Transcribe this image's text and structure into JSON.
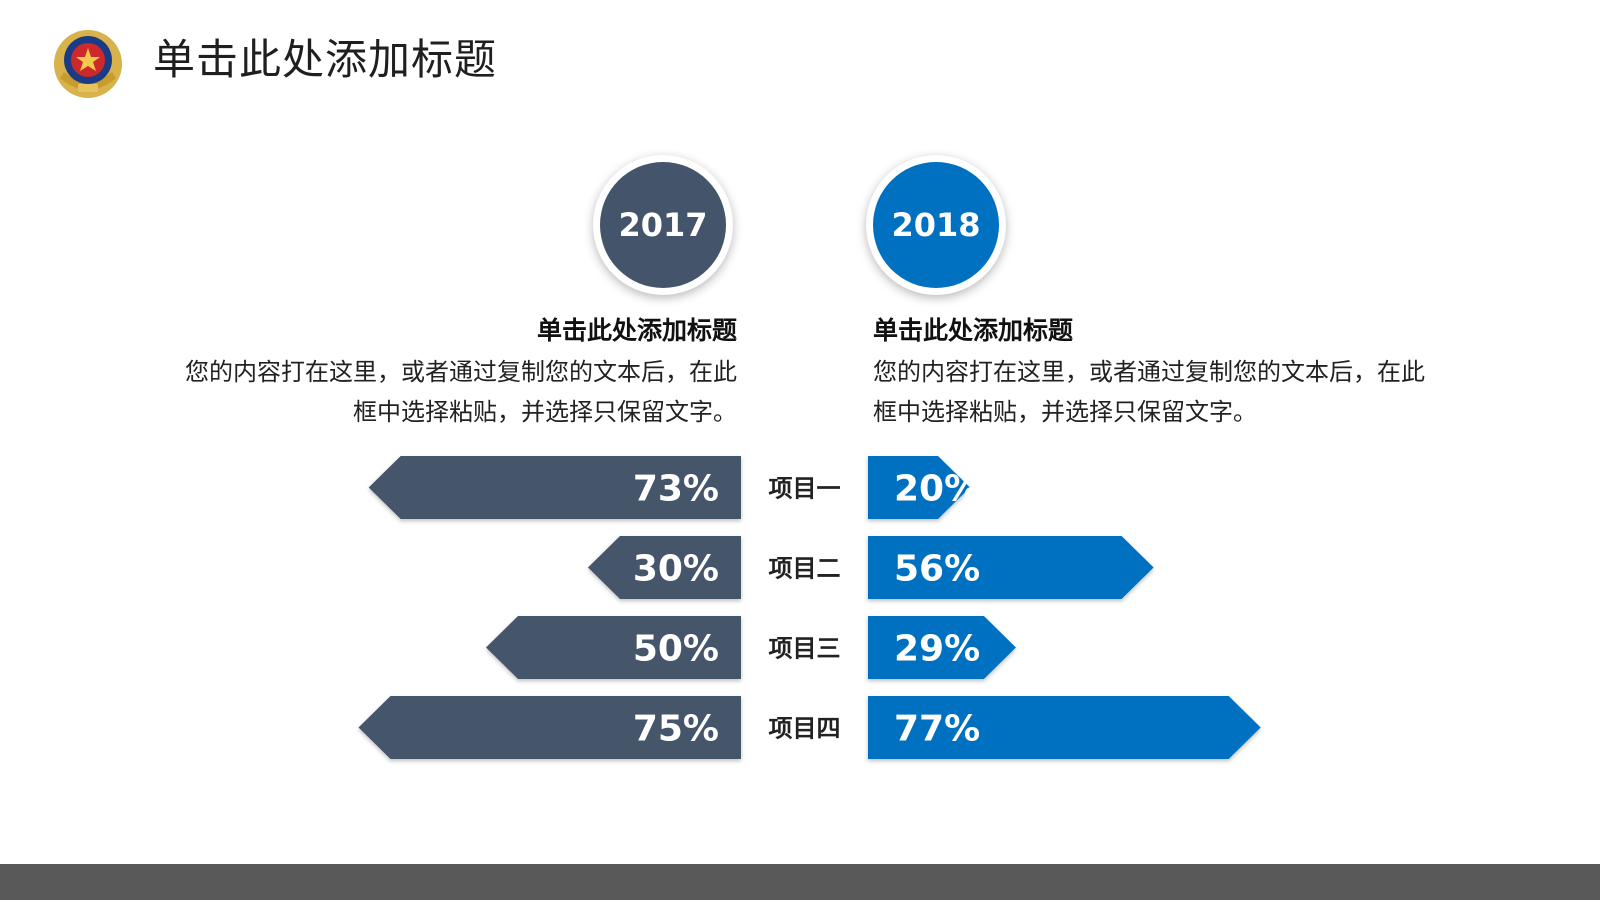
{
  "slide": {
    "title": "单击此处添加标题"
  },
  "emblem": {
    "name": "police-emblem-icon"
  },
  "years": {
    "left": "2017",
    "right": "2018"
  },
  "blocks": {
    "left": {
      "heading": "单击此处添加标题",
      "body_line1": "您的内容打在这里，或者通过复制您的文本后，在此",
      "body_line2": "框中选择粘贴，并选择只保留文字。"
    },
    "right": {
      "heading": "单击此处添加标题",
      "body_line1": "您的内容打在这里，或者通过复制您的文本后，在此",
      "body_line2": "框中选择粘贴，并选择只保留文字。"
    }
  },
  "colors": {
    "left_series": "#44546a",
    "right_series": "#0070c0",
    "footer": "#595959"
  },
  "chart_data": {
    "type": "bar",
    "orientation": "horizontal-butterfly",
    "categories": [
      "项目一",
      "项目二",
      "项目三",
      "项目四"
    ],
    "series": [
      {
        "name": "2017",
        "values": [
          73,
          30,
          50,
          75
        ],
        "labels": [
          "73%",
          "30%",
          "50%",
          "75%"
        ]
      },
      {
        "name": "2018",
        "values": [
          20,
          56,
          29,
          77
        ],
        "labels": [
          "20%",
          "56%",
          "29%",
          "77%"
        ]
      }
    ],
    "unit": "%"
  }
}
